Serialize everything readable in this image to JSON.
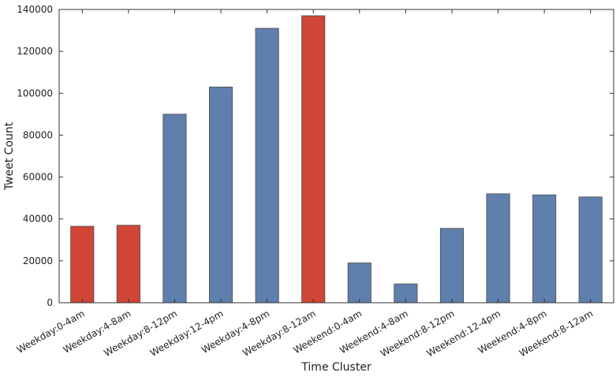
{
  "chart_data": {
    "type": "bar",
    "title": "",
    "xlabel": "Time Cluster",
    "ylabel": "Tweet Count",
    "ylim": [
      0,
      140000
    ],
    "yticks": [
      "0",
      "20000",
      "40000",
      "60000",
      "80000",
      "100000",
      "120000",
      "140000"
    ],
    "grid": false,
    "legend": "none",
    "categories": [
      "Weekday:0-4am",
      "Weekday:4-8am",
      "Weekday:8-12pm",
      "Weekday:12-4pm",
      "Weekday:4-8pm",
      "Weekday:8-12am",
      "Weekend:0-4am",
      "Weekend:4-8am",
      "Weekend:8-12pm",
      "Weekend:12-4pm",
      "Weekend:4-8pm",
      "Weekend:8-12am"
    ],
    "values": [
      36500,
      37000,
      90000,
      103000,
      131000,
      137000,
      19000,
      9000,
      35500,
      52000,
      51500,
      50500
    ],
    "bar_colors": [
      "#cf4636",
      "#cf4636",
      "#5f80ad",
      "#5f80ad",
      "#5f80ad",
      "#cf4636",
      "#5f80ad",
      "#5f80ad",
      "#5f80ad",
      "#5f80ad",
      "#5f80ad",
      "#5f80ad"
    ]
  }
}
